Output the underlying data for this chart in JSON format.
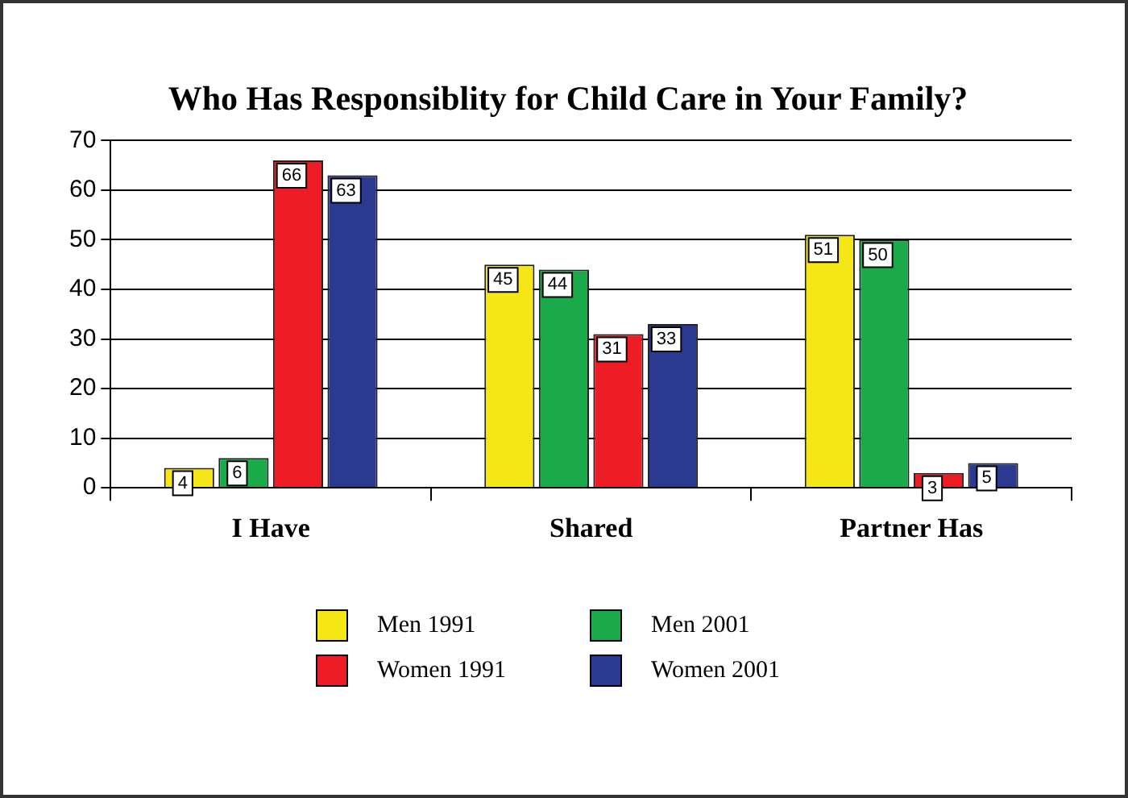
{
  "chart_data": {
    "type": "bar",
    "title": "Who Has Responsiblity for Child Care in Your Family?",
    "categories": [
      "I Have",
      "Shared",
      "Partner Has"
    ],
    "series": [
      {
        "name": "Men 1991",
        "color": "#f5e616",
        "values": [
          4,
          45,
          51
        ]
      },
      {
        "name": "Men 2001",
        "color": "#1aaa4a",
        "values": [
          6,
          44,
          50
        ]
      },
      {
        "name": "Women 1991",
        "color": "#ee1c25",
        "values": [
          66,
          31,
          3
        ]
      },
      {
        "name": "Women 2001",
        "color": "#2b3990",
        "values": [
          63,
          33,
          5
        ]
      }
    ],
    "ylim": [
      0,
      70
    ],
    "yticks": [
      0,
      10,
      20,
      30,
      40,
      50,
      60,
      70
    ],
    "grid": "y",
    "legend": "bottom",
    "data_labels": true
  }
}
